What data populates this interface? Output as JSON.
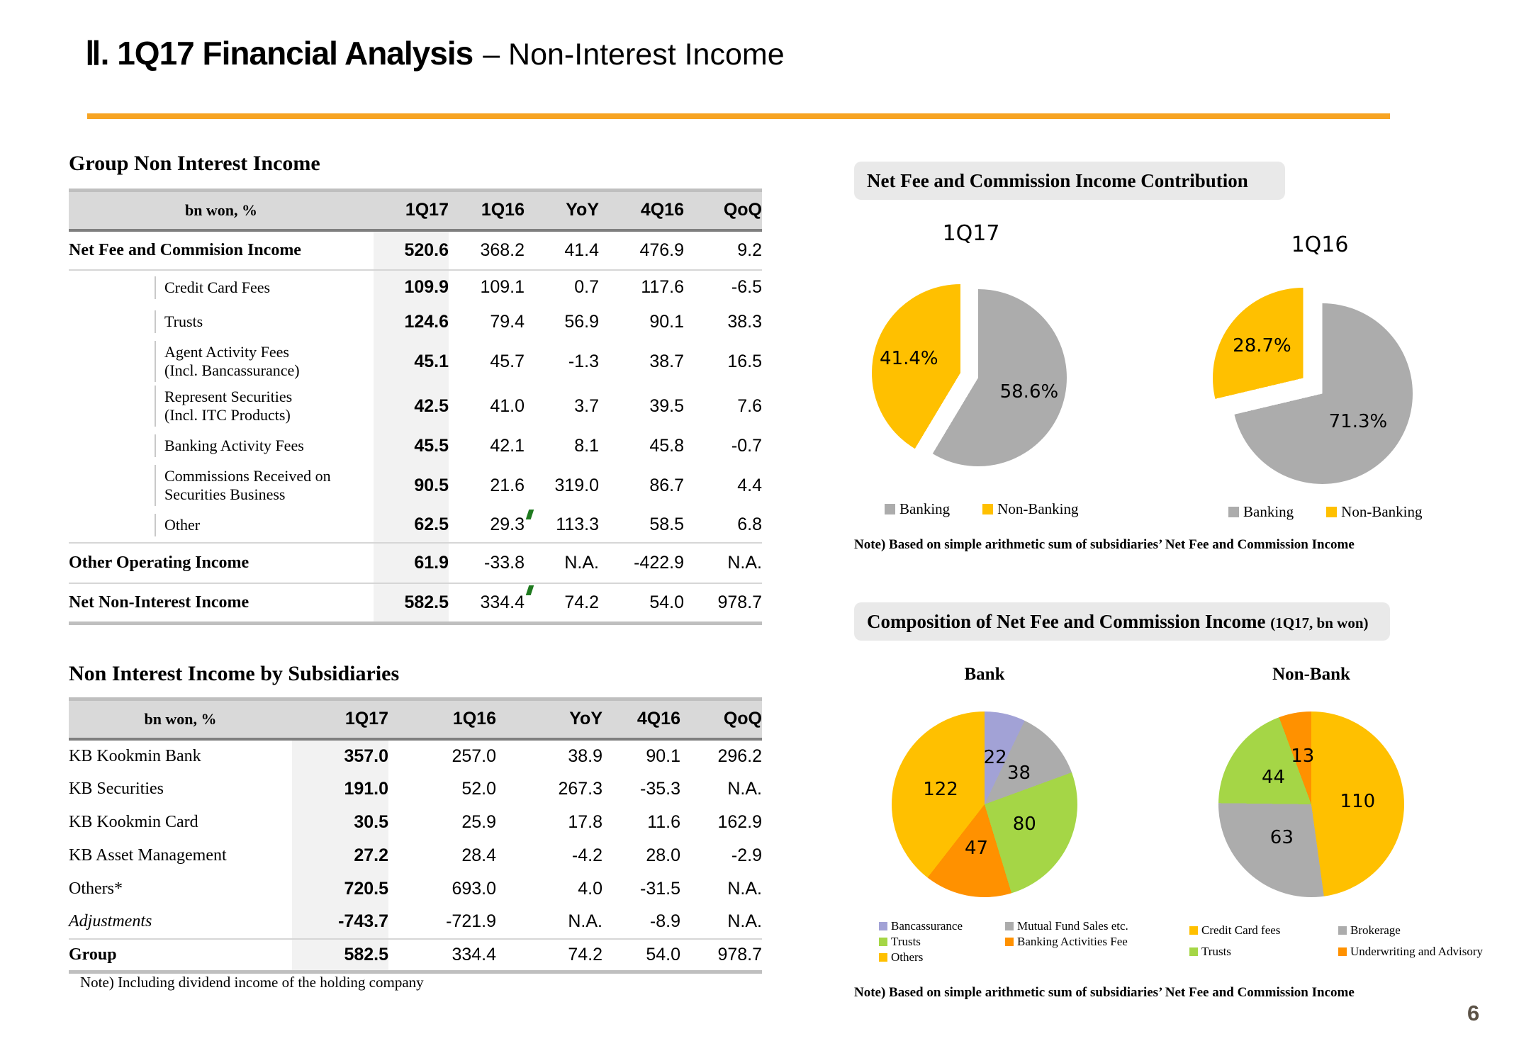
{
  "header": {
    "title_bold": "Ⅱ. 1Q17 Financial Analysis",
    "title_rest": "– Non-Interest Income",
    "accent_color": "#F7A423"
  },
  "page": {
    "number": "6"
  },
  "tables": {
    "group": {
      "heading": "Group Non Interest Income",
      "unit": "bn won, %",
      "columns": [
        "1Q17",
        "1Q16",
        "YoY",
        "4Q16",
        "QoQ"
      ],
      "rows": [
        {
          "label": "Net Fee and Commision Income",
          "values": [
            "520.6",
            "368.2",
            "41.4",
            "476.9",
            "9.2"
          ]
        },
        {
          "label": "Credit Card Fees",
          "values": [
            "109.9",
            "109.1",
            "0.7",
            "117.6",
            "-6.5"
          ]
        },
        {
          "label": "Trusts",
          "values": [
            "124.6",
            "79.4",
            "56.9",
            "90.1",
            "38.3"
          ]
        },
        {
          "label": "Agent Activity Fees",
          "label2": "(Incl. Bancassurance)",
          "values": [
            "45.1",
            "45.7",
            "-1.3",
            "38.7",
            "16.5"
          ]
        },
        {
          "label": "Represent Securities",
          "label2": "(Incl. ITC Products)",
          "values": [
            "42.5",
            "41.0",
            "3.7",
            "39.5",
            "7.6"
          ]
        },
        {
          "label": "Banking Activity Fees",
          "values": [
            "45.5",
            "42.1",
            "8.1",
            "45.8",
            "-0.7"
          ]
        },
        {
          "label": "Commissions Received on",
          "label2": "Securities Business",
          "values": [
            "90.5",
            "21.6",
            "319.0",
            "86.7",
            "4.4"
          ]
        },
        {
          "label": "Other",
          "values": [
            "62.5",
            "29.3",
            "113.3",
            "58.5",
            "6.8"
          ]
        },
        {
          "label": "Other Operating Income",
          "values": [
            "61.9",
            "-33.8",
            "N.A.",
            "-422.9",
            "N.A."
          ]
        },
        {
          "label": "Net Non-Interest Income",
          "values": [
            "582.5",
            "334.4",
            "74.2",
            "54.0",
            "978.7"
          ]
        }
      ]
    },
    "subsidiaries": {
      "heading": "Non Interest Income by Subsidiaries",
      "unit": "bn won, %",
      "columns": [
        "1Q17",
        "1Q16",
        "YoY",
        "4Q16",
        "QoQ"
      ],
      "rows": [
        {
          "label": "KB Kookmin Bank",
          "values": [
            "357.0",
            "257.0",
            "38.9",
            "90.1",
            "296.2"
          ]
        },
        {
          "label": "KB Securities",
          "values": [
            "191.0",
            "52.0",
            "267.3",
            "-35.3",
            "N.A."
          ]
        },
        {
          "label": "KB Kookmin Card",
          "values": [
            "30.5",
            "25.9",
            "17.8",
            "11.6",
            "162.9"
          ]
        },
        {
          "label": "KB Asset Management",
          "values": [
            "27.2",
            "28.4",
            "-4.2",
            "28.0",
            "-2.9"
          ]
        },
        {
          "label": "Others*",
          "values": [
            "720.5",
            "693.0",
            "4.0",
            "-31.5",
            "N.A."
          ]
        },
        {
          "label": "Adjustments",
          "values": [
            "-743.7",
            "-721.9",
            "N.A.",
            "-8.9",
            "N.A."
          ]
        },
        {
          "label": "Group",
          "values": [
            "582.5",
            "334.4",
            "74.2",
            "54.0",
            "978.7"
          ]
        }
      ],
      "note": "Note) Including dividend income of the holding company"
    }
  },
  "contribution": {
    "heading": "Net Fee and Commission Income Contribution",
    "note": "Note) Based on simple arithmetic sum of subsidiaries’ Net Fee and Commission Income"
  },
  "composition": {
    "heading": "Composition of Net Fee and Commission Income",
    "heading_suffix": "(1Q17, bn won)",
    "bank_subtitle": "Bank",
    "nonbank_subtitle": "Non-Bank",
    "note": "Note) Based on simple arithmetic sum of subsidiaries’ Net Fee and Commission Income"
  },
  "chart_data": [
    {
      "type": "pie",
      "title": "1Q17",
      "labels": [
        "Banking",
        "Non-Banking"
      ],
      "values": [
        58.6,
        41.4
      ],
      "unit": "%",
      "display": [
        "58.6%",
        "41.4%"
      ],
      "colors": [
        "#ACACAC",
        "#FFC000"
      ],
      "explode": [
        10,
        16
      ],
      "label_r": [
        0.6,
        0.6
      ],
      "legend_position": "bottom"
    },
    {
      "type": "pie",
      "title": "1Q16",
      "labels": [
        "Banking",
        "Non-Banking"
      ],
      "values": [
        71.3,
        28.7
      ],
      "unit": "%",
      "display": [
        "71.3%",
        "28.7%"
      ],
      "colors": [
        "#ACACAC",
        "#FFC000"
      ],
      "explode": [
        5,
        30
      ],
      "label_r": [
        0.5,
        0.58
      ],
      "legend_position": "bottom"
    },
    {
      "type": "pie",
      "title": "Bank",
      "labels": [
        "Bancassurance",
        "Mutual Fund Sales etc.",
        "Trusts",
        "Banking Activities Fee",
        "Others"
      ],
      "values": [
        22,
        38,
        80,
        47,
        122
      ],
      "unit": "bn won",
      "display": [
        "22",
        "38",
        "80",
        "47",
        "122"
      ],
      "colors": [
        "#A2A2D6",
        "#ACACAC",
        "#A5D646",
        "#FF9100",
        "#FFC000"
      ],
      "explode": [
        0,
        0,
        0,
        0,
        0
      ],
      "label_r": [
        0.52,
        0.5,
        0.48,
        0.48,
        0.5
      ],
      "legend_position": "bottom"
    },
    {
      "type": "pie",
      "title": "Non-Bank",
      "labels": [
        "Credit Card fees",
        "Brokerage",
        "Trusts",
        "Underwriting and Advisory"
      ],
      "values": [
        110,
        63,
        44,
        13
      ],
      "unit": "bn won",
      "display": [
        "110",
        "63",
        "44",
        "13"
      ],
      "colors": [
        "#FFC000",
        "#ACACAC",
        "#A5D646",
        "#FF9100"
      ],
      "explode": [
        0,
        0,
        0,
        0
      ],
      "label_r": [
        0.5,
        0.48,
        0.5,
        0.53
      ],
      "legend_position": "bottom"
    }
  ]
}
